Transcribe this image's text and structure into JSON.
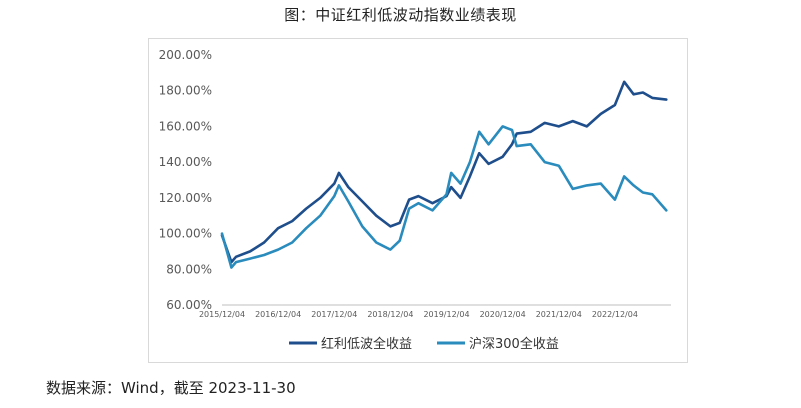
{
  "title": "图：中证红利低波动指数业绩表现",
  "source": "数据来源：Wind，截至 2023-11-30",
  "chart_data": {
    "type": "line",
    "y_tick_labels": [
      "60.00%",
      "80.00%",
      "100.00%",
      "120.00%",
      "140.00%",
      "160.00%",
      "180.00%",
      "200.00%"
    ],
    "x_tick_labels": [
      "2015/12/04",
      "2016/12/04",
      "2017/12/04",
      "2018/12/04",
      "2019/12/04",
      "2020/12/04",
      "2021/12/04",
      "2022/12/04"
    ],
    "x": [
      "2015-12",
      "2016-02",
      "2016-03",
      "2016-06",
      "2016-09",
      "2016-12",
      "2017-03",
      "2017-06",
      "2017-09",
      "2017-12",
      "2018-01",
      "2018-03",
      "2018-06",
      "2018-09",
      "2018-12",
      "2019-02",
      "2019-04",
      "2019-06",
      "2019-09",
      "2019-12",
      "2020-01",
      "2020-03",
      "2020-05",
      "2020-07",
      "2020-09",
      "2020-12",
      "2021-02",
      "2021-03",
      "2021-06",
      "2021-09",
      "2021-12",
      "2022-03",
      "2022-06",
      "2022-09",
      "2022-12",
      "2023-02",
      "2023-04",
      "2023-06",
      "2023-08",
      "2023-11"
    ],
    "series": [
      {
        "name": "红利低波全收益",
        "color": "#1f4e8c",
        "values": [
          99,
          84,
          87,
          90,
          95,
          103,
          107,
          114,
          120,
          128,
          134,
          126,
          118,
          110,
          104,
          106,
          119,
          121,
          117,
          121,
          126,
          120,
          132,
          145,
          139,
          143,
          150,
          156,
          157,
          162,
          160,
          163,
          160,
          167,
          172,
          185,
          178,
          179,
          176,
          175
        ]
      },
      {
        "name": "沪深300全收益",
        "color": "#2a8bbd",
        "values": [
          100,
          81,
          84,
          86,
          88,
          91,
          95,
          103,
          110,
          121,
          127,
          118,
          104,
          95,
          91,
          96,
          114,
          117,
          113,
          122,
          134,
          128,
          140,
          157,
          150,
          160,
          158,
          149,
          150,
          140,
          138,
          125,
          127,
          128,
          119,
          132,
          127,
          123,
          122,
          113
        ]
      }
    ],
    "ylim": [
      60,
      200
    ],
    "legend": "bottom"
  }
}
